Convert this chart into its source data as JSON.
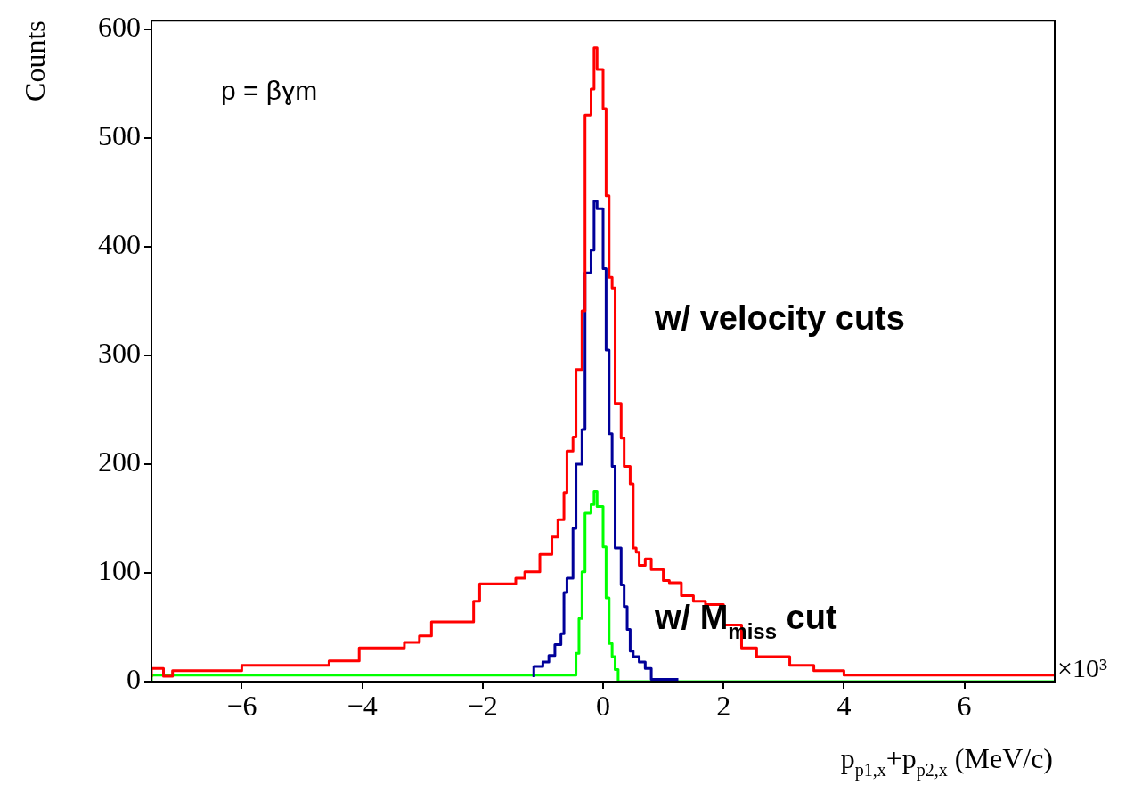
{
  "chart_data": {
    "type": "step",
    "xlabel": "p$_{p1,x}$+p$_{p2,x}$ (MeV/c)",
    "ylabel": "Counts",
    "annotations": [
      "p = βɣm",
      "w/ velocity cuts",
      "w/ M$_{miss}$ cut",
      "×10³"
    ],
    "xlim": [
      -7.5,
      7.5
    ],
    "xticks": [
      {
        "value": -6,
        "label": "−6"
      },
      {
        "value": -4,
        "label": "−4"
      },
      {
        "value": -2,
        "label": "−2"
      },
      0,
      2,
      4,
      6
    ],
    "ylim": [
      0,
      608
    ],
    "yticks": [
      0,
      100,
      200,
      300,
      400,
      500,
      600
    ],
    "series": [
      {
        "color": "#ff0000",
        "x": [
          -7.5,
          -7.3,
          -7.15,
          -6,
          -4.55,
          -4.05,
          -3.3,
          -3.05,
          -2.85,
          -2.15,
          -2.05,
          -1.45,
          -1.3,
          -1.05,
          -0.85,
          -0.75,
          -0.65,
          -0.6,
          -0.5,
          -0.45,
          -0.35,
          -0.3,
          -0.2,
          -0.15,
          -0.1,
          0,
          0.05,
          0.1,
          0.15,
          0.2,
          0.3,
          0.35,
          0.45,
          0.5,
          0.55,
          0.6,
          0.7,
          0.8,
          1,
          1.1,
          1.3,
          1.5,
          1.7,
          2,
          2.3,
          2.55,
          3.1,
          3.5,
          4,
          4.7,
          7.5
        ],
        "values": [
          4,
          12,
          5,
          10,
          15,
          19,
          31,
          36,
          42,
          55,
          74,
          90,
          95,
          101,
          117,
          133,
          149,
          174,
          212,
          225,
          287,
          341,
          521,
          545,
          583,
          563,
          527,
          447,
          372,
          362,
          256,
          224,
          198,
          182,
          123,
          119,
          107,
          113,
          103,
          93,
          91,
          79,
          74,
          71,
          52,
          31,
          23,
          15,
          10,
          6,
          6
        ]
      },
      {
        "color": "#000099",
        "x": [
          -1.15,
          -1,
          -0.9,
          -0.8,
          -0.7,
          -0.65,
          -0.6,
          -0.5,
          -0.45,
          -0.35,
          -0.3,
          -0.2,
          -0.15,
          -0.1,
          0,
          0.05,
          0.1,
          0.15,
          0.2,
          0.3,
          0.35,
          0.4,
          0.45,
          0.5,
          0.6,
          0.7,
          0.8,
          1,
          1.25
        ],
        "values": [
          4,
          14,
          18,
          24,
          34,
          44,
          82,
          95,
          141,
          200,
          232,
          376,
          397,
          442,
          435,
          380,
          305,
          228,
          198,
          123,
          89,
          69,
          48,
          28,
          23,
          18,
          12,
          2,
          2
        ]
      },
      {
        "color": "#00ff00",
        "x": [
          -7.5,
          -0.45,
          -0.4,
          -0.35,
          -0.3,
          -0.2,
          -0.15,
          -0.1,
          0,
          0.05,
          0.1,
          0.15,
          0.2,
          0.25,
          0.3,
          7.5
        ],
        "values": [
          0,
          6,
          26,
          58,
          101,
          155,
          163,
          175,
          161,
          124,
          77,
          35,
          23,
          11,
          0,
          0
        ]
      }
    ]
  }
}
